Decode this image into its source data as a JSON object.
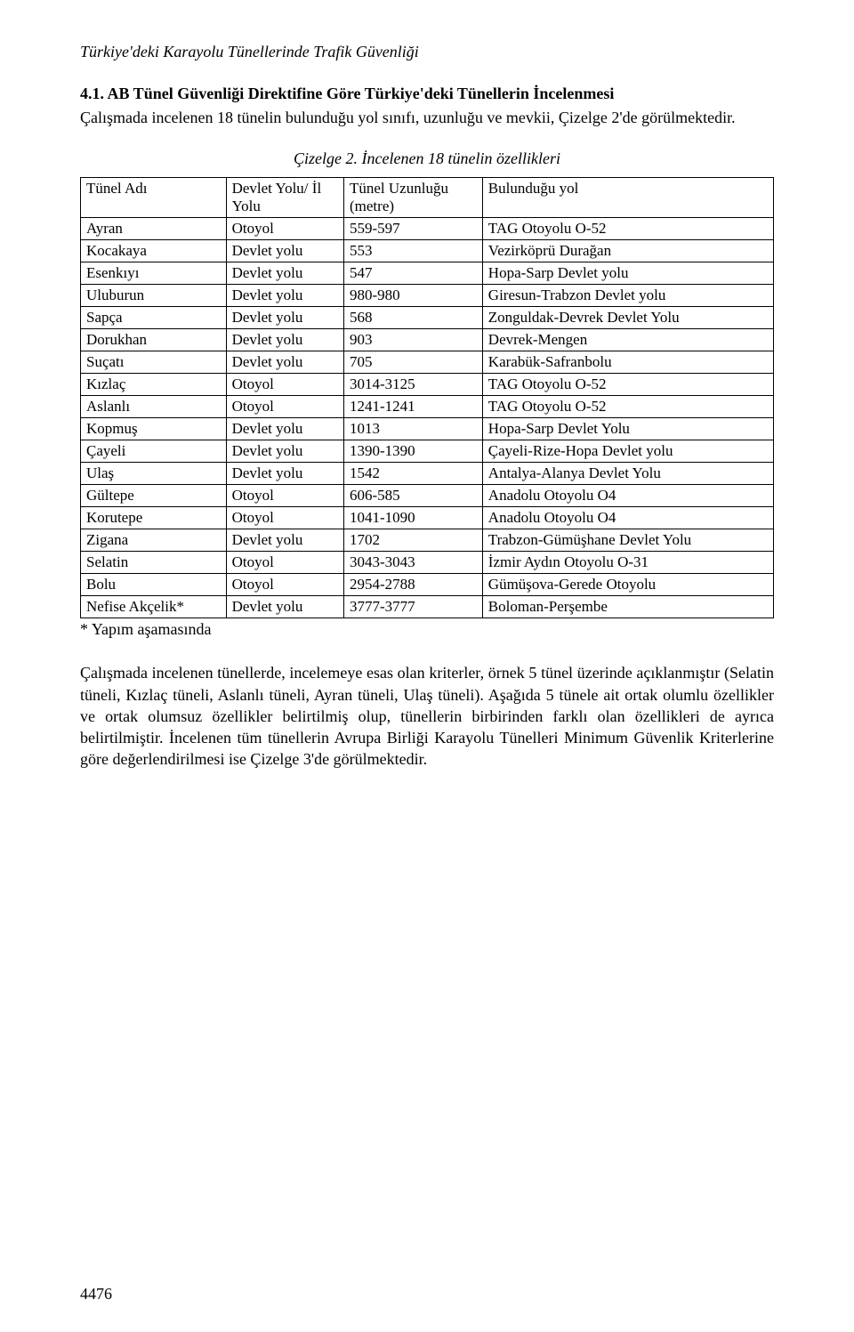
{
  "page": {
    "running_title": "Türkiye'deki Karayolu Tünellerinde Trafik Güvenliği",
    "number": "4476"
  },
  "section": {
    "heading": "4.1. AB Tünel Güvenliği Direktifine Göre Türkiye'deki Tünellerin İncelenmesi",
    "intro": "Çalışmada incelenen 18 tünelin bulunduğu yol sınıfı, uzunluğu ve mevkii, Çizelge 2'de görülmektedir."
  },
  "table": {
    "caption": "Çizelge 2. İncelenen 18 tünelin özellikleri",
    "headers": {
      "name": "Tünel Adı",
      "road": "Devlet Yolu/ İl Yolu",
      "length": "Tünel Uzunluğu (metre)",
      "location": "Bulunduğu yol"
    },
    "rows": [
      {
        "name": "Ayran",
        "road": "Otoyol",
        "length": "559-597",
        "location": "TAG Otoyolu O-52"
      },
      {
        "name": "Kocakaya",
        "road": "Devlet yolu",
        "length": "553",
        "location": "Vezirköprü Durağan"
      },
      {
        "name": "Esenkıyı",
        "road": "Devlet yolu",
        "length": "547",
        "location": "Hopa-Sarp Devlet yolu"
      },
      {
        "name": "Uluburun",
        "road": "Devlet yolu",
        "length": "980-980",
        "location": "Giresun-Trabzon Devlet yolu"
      },
      {
        "name": "Sapça",
        "road": "Devlet yolu",
        "length": "568",
        "location": "Zonguldak-Devrek Devlet Yolu"
      },
      {
        "name": "Dorukhan",
        "road": "Devlet yolu",
        "length": "903",
        "location": "Devrek-Mengen"
      },
      {
        "name": "Suçatı",
        "road": "Devlet yolu",
        "length": "705",
        "location": "Karabük-Safranbolu"
      },
      {
        "name": "Kızlaç",
        "road": "Otoyol",
        "length": "3014-3125",
        "location": "TAG Otoyolu O-52"
      },
      {
        "name": "Aslanlı",
        "road": "Otoyol",
        "length": "1241-1241",
        "location": "TAG Otoyolu O-52"
      },
      {
        "name": "Kopmuş",
        "road": "Devlet yolu",
        "length": "1013",
        "location": "Hopa-Sarp Devlet Yolu"
      },
      {
        "name": "Çayeli",
        "road": "Devlet yolu",
        "length": "1390-1390",
        "location": "Çayeli-Rize-Hopa Devlet yolu"
      },
      {
        "name": "Ulaş",
        "road": "Devlet yolu",
        "length": "1542",
        "location": "Antalya-Alanya Devlet Yolu"
      },
      {
        "name": "Gültepe",
        "road": "Otoyol",
        "length": "606-585",
        "location": "Anadolu Otoyolu O4"
      },
      {
        "name": "Korutepe",
        "road": "Otoyol",
        "length": "1041-1090",
        "location": "Anadolu Otoyolu O4"
      },
      {
        "name": "Zigana",
        "road": "Devlet yolu",
        "length": "1702",
        "location": "Trabzon-Gümüşhane Devlet Yolu"
      },
      {
        "name": "Selatin",
        "road": "Otoyol",
        "length": "3043-3043",
        "location": "İzmir Aydın Otoyolu O-31"
      },
      {
        "name": "Bolu",
        "road": "Otoyol",
        "length": "2954-2788",
        "location": "Gümüşova-Gerede Otoyolu"
      },
      {
        "name": "Nefise Akçelik*",
        "road": "Devlet yolu",
        "length": "3777-3777",
        "location": "Boloman-Perşembe"
      }
    ],
    "footnote": "* Yapım aşamasında"
  },
  "closing_paragraph": "Çalışmada incelenen tünellerde, incelemeye esas olan kriterler, örnek 5 tünel üzerinde açıklanmıştır (Selatin tüneli, Kızlaç tüneli, Aslanlı tüneli, Ayran tüneli, Ulaş tüneli). Aşağıda 5 tünele ait ortak olumlu özellikler ve ortak olumsuz özellikler belirtilmiş olup, tünellerin birbirinden farklı olan özellikleri de ayrıca belirtilmiştir. İncelenen tüm tünellerin Avrupa Birliği Karayolu Tünelleri Minimum Güvenlik Kriterlerine göre değerlendirilmesi ise Çizelge 3'de görülmektedir."
}
